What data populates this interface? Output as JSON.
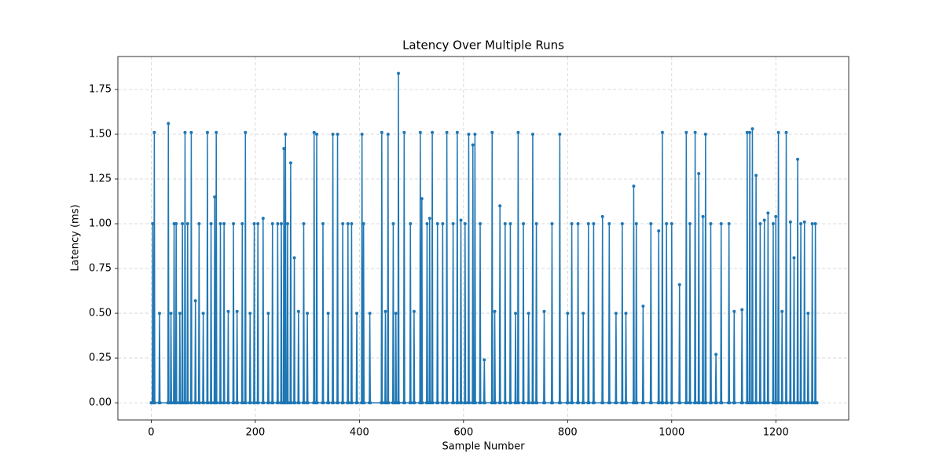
{
  "chart_data": {
    "type": "line",
    "title": "Latency Over Multiple Runs",
    "x_label": "Sample Number",
    "y_label": "Latency (ms)",
    "xlim": [
      -64,
      1340
    ],
    "ylim": [
      -0.096,
      1.934
    ],
    "xticks": [
      0,
      200,
      400,
      600,
      800,
      1000,
      1200
    ],
    "yticks": [
      {
        "value": 0,
        "label": "0.00"
      },
      {
        "value": 0.25,
        "label": "0.25"
      },
      {
        "value": 0.5,
        "label": "0.50"
      },
      {
        "value": 0.75,
        "label": "0.75"
      },
      {
        "value": 1,
        "label": "1.00"
      },
      {
        "value": 1.25,
        "label": "1.25"
      },
      {
        "value": 1.5,
        "label": "1.50"
      },
      {
        "value": 1.75,
        "label": "1.75"
      }
    ],
    "grid": true,
    "color": "#1f77b4",
    "markers": true,
    "x": [
      0,
      2,
      3,
      4,
      5,
      6,
      7,
      15,
      16,
      17,
      32,
      33,
      34,
      37,
      38,
      39,
      43,
      44,
      45,
      47,
      48,
      49,
      54,
      55,
      56,
      59,
      60,
      61,
      64,
      65,
      66,
      69,
      70,
      71,
      76,
      77,
      78,
      84,
      85,
      86,
      91,
      92,
      93,
      99,
      100,
      101,
      107,
      108,
      109,
      114,
      115,
      116,
      121,
      122,
      123,
      124,
      125,
      126,
      132,
      133,
      134,
      139,
      140,
      141,
      147,
      148,
      149,
      157,
      158,
      159,
      164,
      165,
      166,
      174,
      175,
      176,
      180,
      181,
      182,
      189,
      190,
      191,
      197,
      198,
      199,
      204,
      205,
      206,
      214,
      215,
      216,
      224,
      225,
      226,
      232,
      233,
      234,
      242,
      243,
      244,
      249,
      250,
      251,
      254,
      255,
      256,
      257,
      258,
      259,
      261,
      262,
      263,
      267,
      268,
      269,
      274,
      275,
      276,
      282,
      283,
      284,
      292,
      293,
      294,
      299,
      300,
      301,
      312,
      313,
      314,
      317,
      318,
      319,
      329,
      330,
      331,
      339,
      340,
      341,
      348,
      349,
      350,
      357,
      358,
      359,
      367,
      368,
      369,
      377,
      378,
      379,
      384,
      385,
      386,
      394,
      395,
      396,
      404,
      405,
      406,
      407,
      408,
      409,
      419,
      420,
      421,
      442,
      443,
      444,
      449,
      450,
      451,
      454,
      455,
      456,
      464,
      465,
      466,
      469,
      470,
      471,
      474,
      475,
      476,
      485,
      486,
      487,
      497,
      498,
      499,
      504,
      505,
      506,
      516,
      517,
      518,
      519,
      520,
      521,
      529,
      530,
      531,
      534,
      535,
      536,
      539,
      540,
      541,
      549,
      550,
      551,
      559,
      560,
      561,
      567,
      568,
      569,
      579,
      580,
      581,
      587,
      588,
      589,
      594,
      595,
      596,
      602,
      603,
      604,
      609,
      610,
      611,
      617,
      618,
      619,
      621,
      622,
      623,
      631,
      632,
      633,
      639,
      640,
      641,
      654,
      655,
      656,
      659,
      660,
      661,
      669,
      670,
      671,
      679,
      680,
      681,
      689,
      690,
      691,
      699,
      700,
      701,
      704,
      705,
      706,
      714,
      715,
      716,
      724,
      725,
      726,
      732,
      733,
      734,
      739,
      740,
      741,
      754,
      755,
      756,
      769,
      770,
      771,
      784,
      785,
      786,
      799,
      800,
      801,
      807,
      808,
      809,
      819,
      820,
      821,
      829,
      830,
      831,
      839,
      840,
      841,
      849,
      850,
      851,
      866,
      867,
      868,
      879,
      880,
      881,
      892,
      893,
      894,
      904,
      905,
      906,
      911,
      912,
      913,
      926,
      927,
      928,
      931,
      932,
      933,
      944,
      945,
      946,
      959,
      960,
      961,
      974,
      975,
      976,
      981,
      982,
      983,
      989,
      990,
      991,
      999,
      1000,
      1001,
      1014,
      1015,
      1016,
      1027,
      1028,
      1029,
      1034,
      1035,
      1036,
      1044,
      1045,
      1046,
      1051,
      1052,
      1053,
      1059,
      1060,
      1061,
      1064,
      1065,
      1066,
      1074,
      1075,
      1076,
      1084,
      1085,
      1086,
      1094,
      1095,
      1096,
      1109,
      1110,
      1111,
      1119,
      1120,
      1121,
      1134,
      1135,
      1136,
      1144,
      1145,
      1146,
      1149,
      1150,
      1151,
      1154,
      1155,
      1156,
      1161,
      1162,
      1163,
      1169,
      1170,
      1171,
      1177,
      1178,
      1179,
      1184,
      1185,
      1186,
      1194,
      1195,
      1196,
      1199,
      1200,
      1201,
      1204,
      1205,
      1206,
      1211,
      1212,
      1213,
      1219,
      1220,
      1221,
      1227,
      1228,
      1229,
      1234,
      1235,
      1236,
      1241,
      1242,
      1243,
      1247,
      1248,
      1249,
      1254,
      1255,
      1256,
      1261,
      1262,
      1263,
      1269,
      1270,
      1271,
      1275,
      1276,
      1277,
      1279
    ],
    "values": [
      0,
      0,
      1.0,
      0,
      0,
      1.51,
      0,
      0,
      0.5,
      0,
      0,
      1.56,
      0,
      0,
      0.5,
      0,
      0,
      1.0,
      0,
      0,
      1.0,
      0,
      0,
      0.5,
      0,
      0,
      1.0,
      0,
      0,
      1.51,
      0,
      0,
      1.0,
      0,
      0,
      1.51,
      0,
      0,
      0.57,
      0,
      0,
      1.0,
      0,
      0,
      0.5,
      0,
      0,
      1.51,
      0,
      0,
      1.0,
      0,
      0,
      1.15,
      0,
      0,
      1.51,
      0,
      0,
      1.0,
      0,
      0,
      1.0,
      0,
      0,
      0.51,
      0,
      0,
      1.0,
      0,
      0,
      0.51,
      0,
      0,
      1.0,
      0,
      0,
      1.51,
      0,
      0,
      0.5,
      0,
      0,
      1.0,
      0,
      0,
      1.0,
      0,
      0,
      1.03,
      0,
      0,
      0.5,
      0,
      0,
      1.0,
      0,
      0,
      1.0,
      0,
      0,
      1.0,
      0,
      0,
      1.42,
      0,
      0,
      1.5,
      0,
      0,
      1.0,
      0,
      0,
      1.34,
      0,
      0,
      0.81,
      0,
      0,
      0.51,
      0,
      0,
      1.0,
      0,
      0,
      0.5,
      0,
      0,
      1.51,
      0,
      0,
      1.5,
      0,
      0,
      1.0,
      0,
      0,
      0.5,
      0,
      0,
      1.5,
      0,
      0,
      1.5,
      0,
      0,
      1.0,
      0,
      0,
      1.0,
      0,
      0,
      1.0,
      0,
      0,
      0.5,
      0,
      0,
      1.5,
      0,
      0,
      1.0,
      0,
      0,
      0.5,
      0,
      0,
      1.51,
      0,
      0,
      0.51,
      0,
      0,
      1.5,
      0,
      0,
      1.0,
      0,
      0,
      0.5,
      0,
      0,
      1.84,
      0,
      0,
      1.51,
      0,
      0,
      1.0,
      0,
      0,
      0.51,
      0,
      0,
      1.51,
      0,
      0,
      1.14,
      0,
      0,
      1.0,
      0,
      0,
      1.03,
      0,
      0,
      1.51,
      0,
      0,
      1.0,
      0,
      0,
      1.0,
      0,
      0,
      1.51,
      0,
      0,
      1.0,
      0,
      0,
      1.51,
      0,
      0,
      1.02,
      0,
      0,
      1.0,
      0,
      0,
      1.5,
      0,
      0,
      1.44,
      0,
      0,
      1.5,
      0,
      0,
      1.0,
      0,
      0,
      0.24,
      0,
      0,
      1.51,
      0,
      0,
      0.51,
      0,
      0,
      1.1,
      0,
      0,
      1.0,
      0,
      0,
      1.0,
      0,
      0,
      0.5,
      0,
      0,
      1.51,
      0,
      0,
      1.0,
      0,
      0,
      0.5,
      0,
      0,
      1.5,
      0,
      0,
      1.0,
      0,
      0,
      0.51,
      0,
      0,
      1.0,
      0,
      0,
      1.5,
      0,
      0,
      0.5,
      0,
      0,
      1.0,
      0,
      0,
      1.0,
      0,
      0,
      0.5,
      0,
      0,
      1.0,
      0,
      0,
      1.0,
      0,
      0,
      1.04,
      0,
      0,
      1.0,
      0,
      0,
      0.5,
      0,
      0,
      1.0,
      0,
      0,
      0.5,
      0,
      0,
      1.21,
      0,
      0,
      1.0,
      0,
      0,
      0.54,
      0,
      0,
      1.0,
      0,
      0,
      0.96,
      0,
      0,
      1.51,
      0,
      0,
      1.0,
      0,
      0,
      1.0,
      0,
      0,
      0.66,
      0,
      0,
      1.51,
      0,
      0,
      1.0,
      0,
      0,
      1.51,
      0,
      0,
      1.28,
      0,
      0,
      1.04,
      0,
      0,
      1.5,
      0,
      0,
      1.0,
      0,
      0,
      0.27,
      0,
      0,
      1.0,
      0,
      0,
      1.0,
      0,
      0,
      0.51,
      0,
      0,
      0.52,
      0,
      0,
      1.51,
      0,
      0,
      1.51,
      0,
      0,
      1.53,
      0,
      0,
      1.27,
      0,
      0,
      1.0,
      0,
      0,
      1.02,
      0,
      0,
      1.06,
      0,
      0,
      1.0,
      0,
      0,
      1.04,
      0,
      0,
      1.51,
      0,
      0,
      0.51,
      0,
      0,
      1.51,
      0,
      0,
      1.01,
      0,
      0,
      0.81,
      0,
      0,
      1.36,
      0,
      0,
      1.0,
      0,
      0,
      1.01,
      0,
      0,
      0.5,
      0,
      0,
      1.0,
      0,
      0,
      1.0,
      0,
      0
    ]
  }
}
